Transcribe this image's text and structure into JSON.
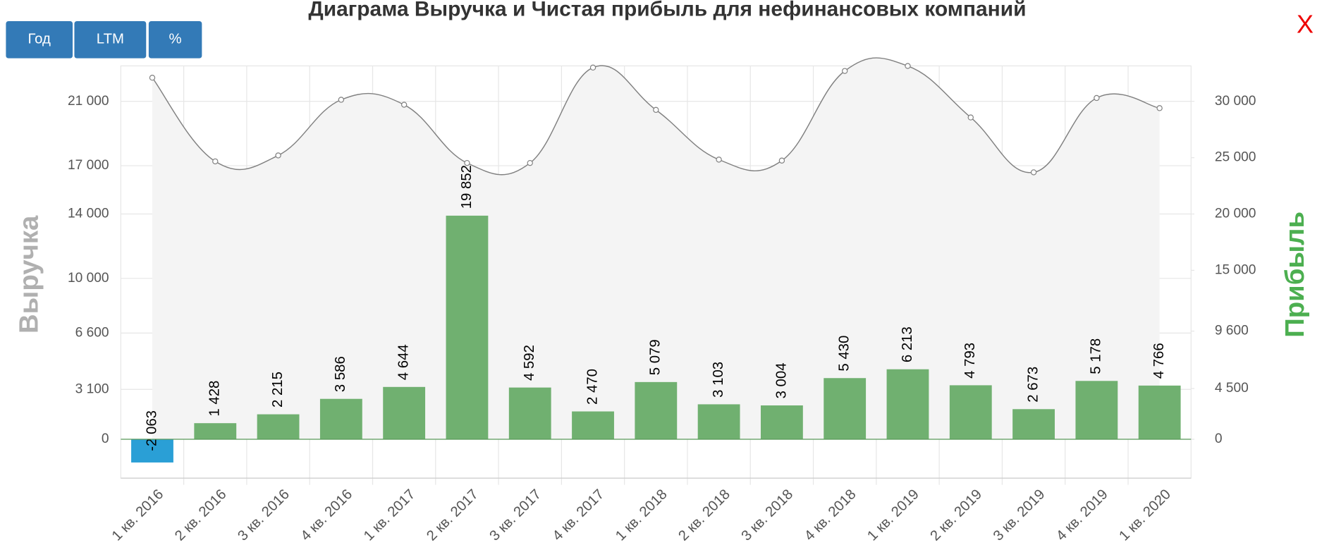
{
  "buttons": [
    "Год",
    "LTM",
    "%"
  ],
  "close": "X",
  "chart_data": {
    "type": "combo",
    "title": "Диаграма Выручка и Чистая прибыль для нефинансовых компаний",
    "categories": [
      "1 кв. 2016",
      "2 кв. 2016",
      "3 кв. 2016",
      "4 кв. 2016",
      "1 кв. 2017",
      "2 кв. 2017",
      "3 кв. 2017",
      "4 кв. 2017",
      "1 кв. 2018",
      "2 кв. 2018",
      "3 кв. 2018",
      "4 кв. 2018",
      "1 кв. 2019",
      "2 кв. 2019",
      "3 кв. 2019",
      "4 кв. 2019",
      "1 кв. 2020"
    ],
    "series": [
      {
        "name": "Выручка",
        "type": "line",
        "color": "#808080",
        "values": [
          22470,
          17270,
          17640,
          21100,
          20790,
          17170,
          17170,
          23100,
          20470,
          17380,
          17320,
          22890,
          23200,
          20000,
          16590,
          21210,
          20580
        ]
      },
      {
        "name": "Прибыль",
        "type": "bar",
        "axis": "y2",
        "color": "#70b070",
        "negative_color": "#2a9fd6",
        "values": [
          -2063,
          1428,
          2215,
          3586,
          4644,
          19852,
          4592,
          2470,
          5079,
          3103,
          3004,
          5430,
          6213,
          4793,
          2673,
          5178,
          4766
        ],
        "value_labels": [
          "-2 063",
          "1 428",
          "2 215",
          "3 586",
          "4 644",
          "19 852",
          "4 592",
          "2 470",
          "5 079",
          "3 103",
          "3 004",
          "5 430",
          "6 213",
          "4 793",
          "2 673",
          "5 178",
          "4 766"
        ]
      }
    ],
    "ylim": [
      -2415,
      23205
    ],
    "yticks": [
      0,
      {
        "value": 3100,
        "label": "3 100"
      },
      {
        "value": 6600,
        "label": "6 600"
      },
      {
        "value": 10000,
        "label": "10 000"
      },
      {
        "value": 14000,
        "label": "14 000"
      },
      {
        "value": 17000,
        "label": "17 000"
      },
      {
        "value": 21000,
        "label": "21 000"
      }
    ],
    "y2lim": [
      -3450,
      33150
    ],
    "y2ticks": [
      0,
      {
        "value": 4500,
        "label": "4 500"
      },
      {
        "value": 9600,
        "label": "9 600"
      },
      {
        "value": 15000,
        "label": "15 000"
      },
      {
        "value": 20000,
        "label": "20 000"
      },
      {
        "value": 25000,
        "label": "25 000"
      },
      {
        "value": 30000,
        "label": "30 000"
      }
    ],
    "grid": true
  }
}
